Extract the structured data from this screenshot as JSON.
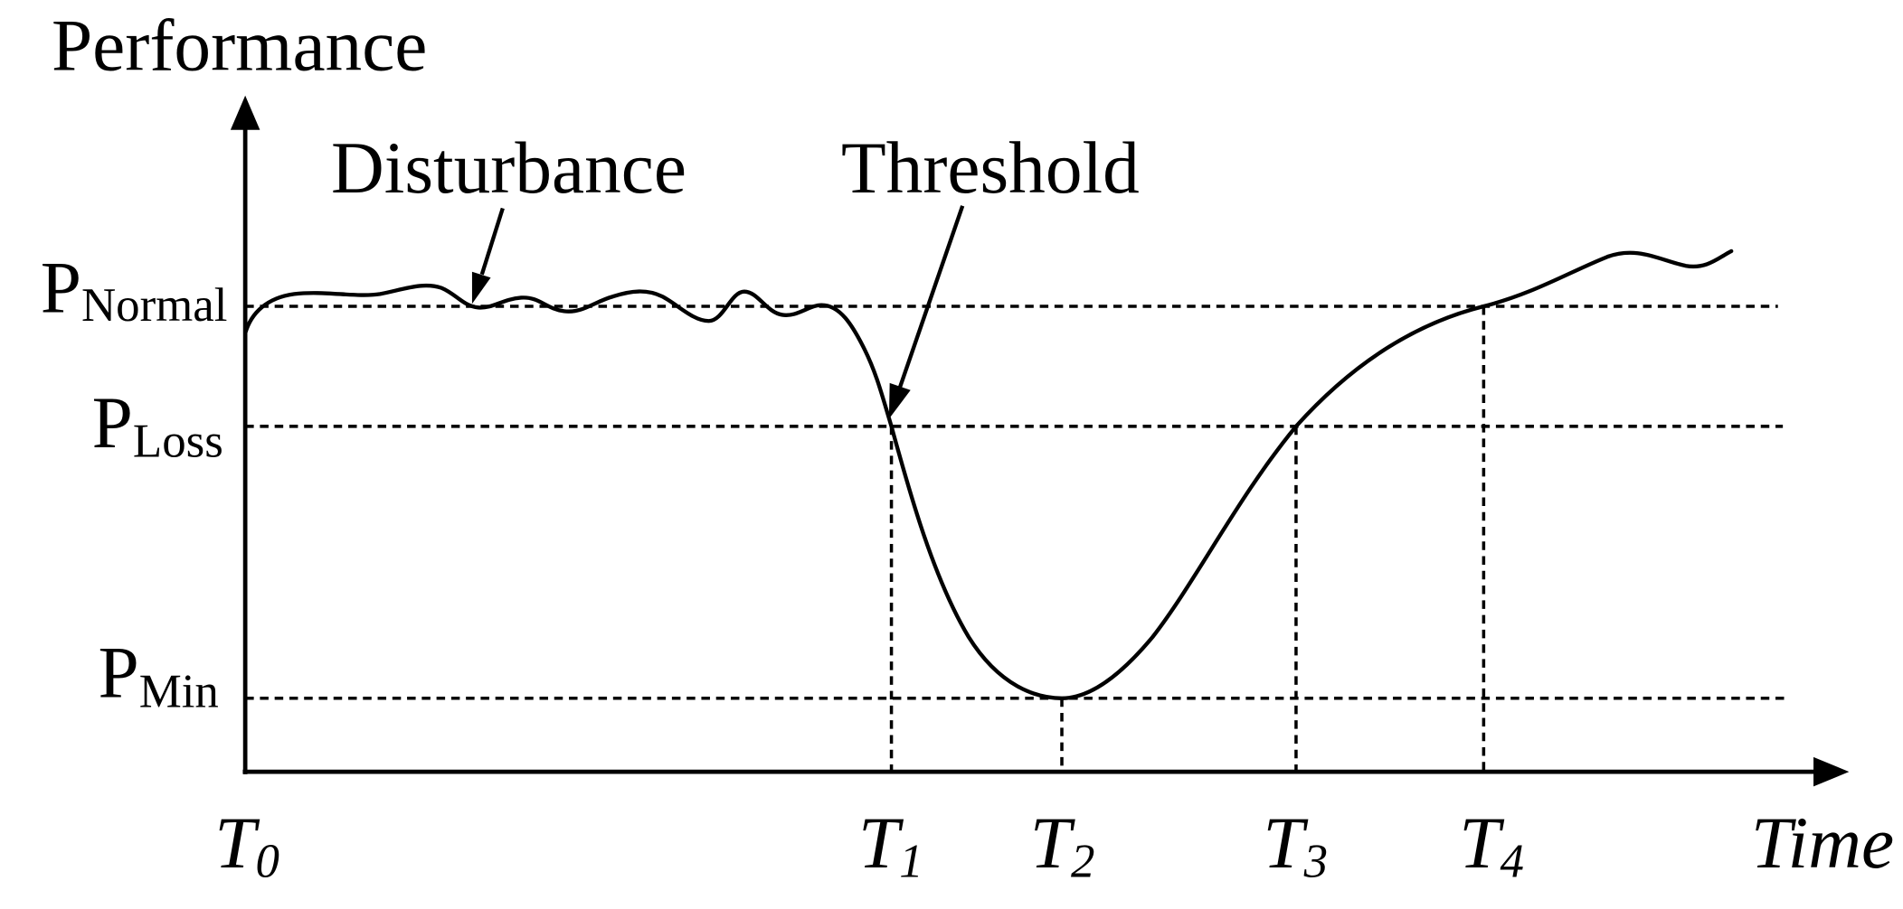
{
  "colors": {
    "ink": "#000000",
    "background": "#ffffff"
  },
  "axes": {
    "y_label": "Performance",
    "x_label": "Time"
  },
  "annotations": {
    "disturbance": "Disturbance",
    "threshold": "Threshold"
  },
  "levels": {
    "normal": {
      "symbol": "P",
      "subscript": "Normal"
    },
    "loss": {
      "symbol": "P",
      "subscript": "Loss"
    },
    "min": {
      "symbol": "P",
      "subscript": "Min"
    }
  },
  "time_points": [
    {
      "symbol": "T",
      "subscript": "0"
    },
    {
      "symbol": "T",
      "subscript": "1"
    },
    {
      "symbol": "T",
      "subscript": "2"
    },
    {
      "symbol": "T",
      "subscript": "3"
    },
    {
      "symbol": "T",
      "subscript": "4"
    }
  ]
}
